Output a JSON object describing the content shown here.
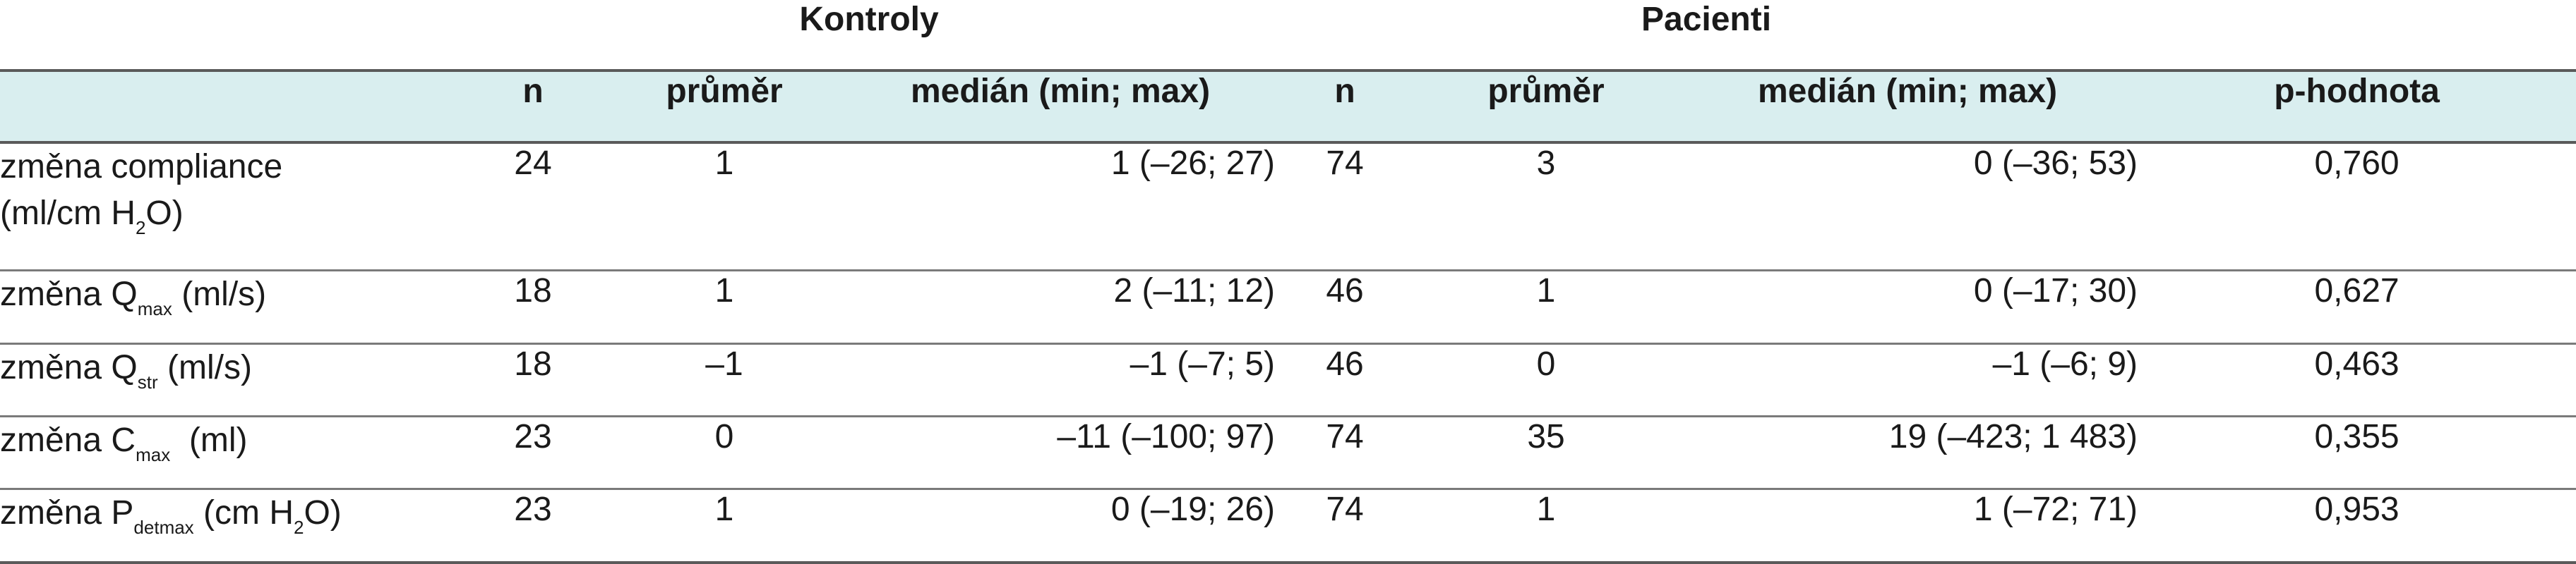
{
  "groups": {
    "kontroly": "Kontroly",
    "pacienti": "Pacienti"
  },
  "columns": {
    "n": "n",
    "prumer": "průměr",
    "median": "medián (min; max)",
    "p": "p-hodnota"
  },
  "rows": [
    {
      "label_main": "změna compliance",
      "label_line2_pre": "(ml/cm H",
      "label_line2_sub": "2",
      "label_line2_post": "O)",
      "k_n": "24",
      "k_mean": "1",
      "k_median": "1 (–26; 27)",
      "p_n": "74",
      "p_mean": "3",
      "p_median": "0 (–36; 53)",
      "pval": "0,760"
    },
    {
      "label_pre": "změna Q",
      "label_sub": "max",
      "label_post": " (ml/s)",
      "k_n": "18",
      "k_mean": "1",
      "k_median": "2 (–11; 12)",
      "p_n": "46",
      "p_mean": "1",
      "p_median": "0 (–17; 30)",
      "pval": "0,627"
    },
    {
      "label_pre": "změna Q",
      "label_sub": "str",
      "label_post": " (ml/s)",
      "k_n": "18",
      "k_mean": "–1",
      "k_median": "–1 (–7; 5)",
      "p_n": "46",
      "p_mean": "0",
      "p_median": "–1 (–6; 9)",
      "pval": "0,463"
    },
    {
      "label_pre": "změna C",
      "label_sub": "max",
      "label_post": "  (ml)",
      "k_n": "23",
      "k_mean": "0",
      "k_median": "–11 (–100; 97)",
      "p_n": "74",
      "p_mean": "35",
      "p_median": "19 (–423; 1 483)",
      "pval": "0,355"
    },
    {
      "label_pre": "změna P",
      "label_sub": "detmax",
      "label_post": " (cm H",
      "label_sub2": "2",
      "label_post2": "O)",
      "k_n": "23",
      "k_mean": "1",
      "k_median": "0 (–19; 26)",
      "p_n": "74",
      "p_mean": "1",
      "p_median": "1 (–72; 71)",
      "pval": "0,953"
    }
  ],
  "colors": {
    "header_fill": "#d9eeef",
    "rule": "#5a5a5a",
    "text": "#1a1a1a"
  }
}
